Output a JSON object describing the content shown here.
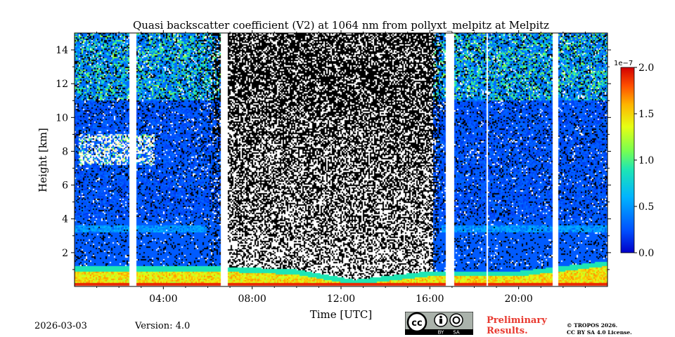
{
  "chart_data": {
    "type": "heatmap",
    "title": "Quasi backscatter coefficient (V2) at 1064 nm from pollyxt_melpitz at Melpitz",
    "xlabel": "Time [UTC]",
    "ylabel": "Height [km]",
    "xlim": [
      0,
      24
    ],
    "ylim": [
      0,
      15
    ],
    "x_ticks": [
      4,
      8,
      12,
      16,
      20
    ],
    "x_tick_labels": [
      "04:00",
      "08:00",
      "12:00",
      "16:00",
      "20:00"
    ],
    "y_ticks": [
      2,
      4,
      6,
      8,
      10,
      12,
      14
    ],
    "y_tick_labels": [
      "2",
      "4",
      "6",
      "8",
      "10",
      "12",
      "14"
    ],
    "colorbar": {
      "range": [
        0,
        2.0
      ],
      "ticks": [
        0.0,
        0.5,
        1.0,
        1.5,
        2.0
      ],
      "tick_labels": [
        "0.0",
        "0.5",
        "1.0",
        "1.5",
        "2.0"
      ],
      "scale_label": "1e−7",
      "colormap": "jet"
    },
    "no_data_gaps_utc": [
      [
        2.5,
        2.8
      ],
      [
        6.6,
        6.9
      ],
      [
        16.7,
        17.1
      ],
      [
        18.55,
        18.6
      ],
      [
        21.5,
        21.8
      ]
    ],
    "features": {
      "boundary_layer_top_km": [
        [
          0,
          1.2
        ],
        [
          6,
          1.2
        ],
        [
          10,
          1.0
        ],
        [
          12.6,
          0.4
        ],
        [
          16,
          0.9
        ],
        [
          20,
          0.9
        ],
        [
          22,
          1.2
        ],
        [
          24,
          1.5
        ]
      ],
      "cloud_layer": {
        "time_utc": [
          0.2,
          3.6
        ],
        "height_km": [
          7.2,
          9.0
        ]
      },
      "aerosol_layer_km": [
        3.2,
        3.6
      ]
    }
  },
  "footer": {
    "date": "2026-03-03",
    "version": "Version: 4.0",
    "license_badge": {
      "cc": "cc",
      "by": "BY",
      "sa": "SA"
    },
    "preliminary_line1": "Preliminary",
    "preliminary_line2": "Results.",
    "copyright_line1": "© TROPOS 2026.",
    "copyright_line2": "CC BY SA 4.0 License."
  }
}
